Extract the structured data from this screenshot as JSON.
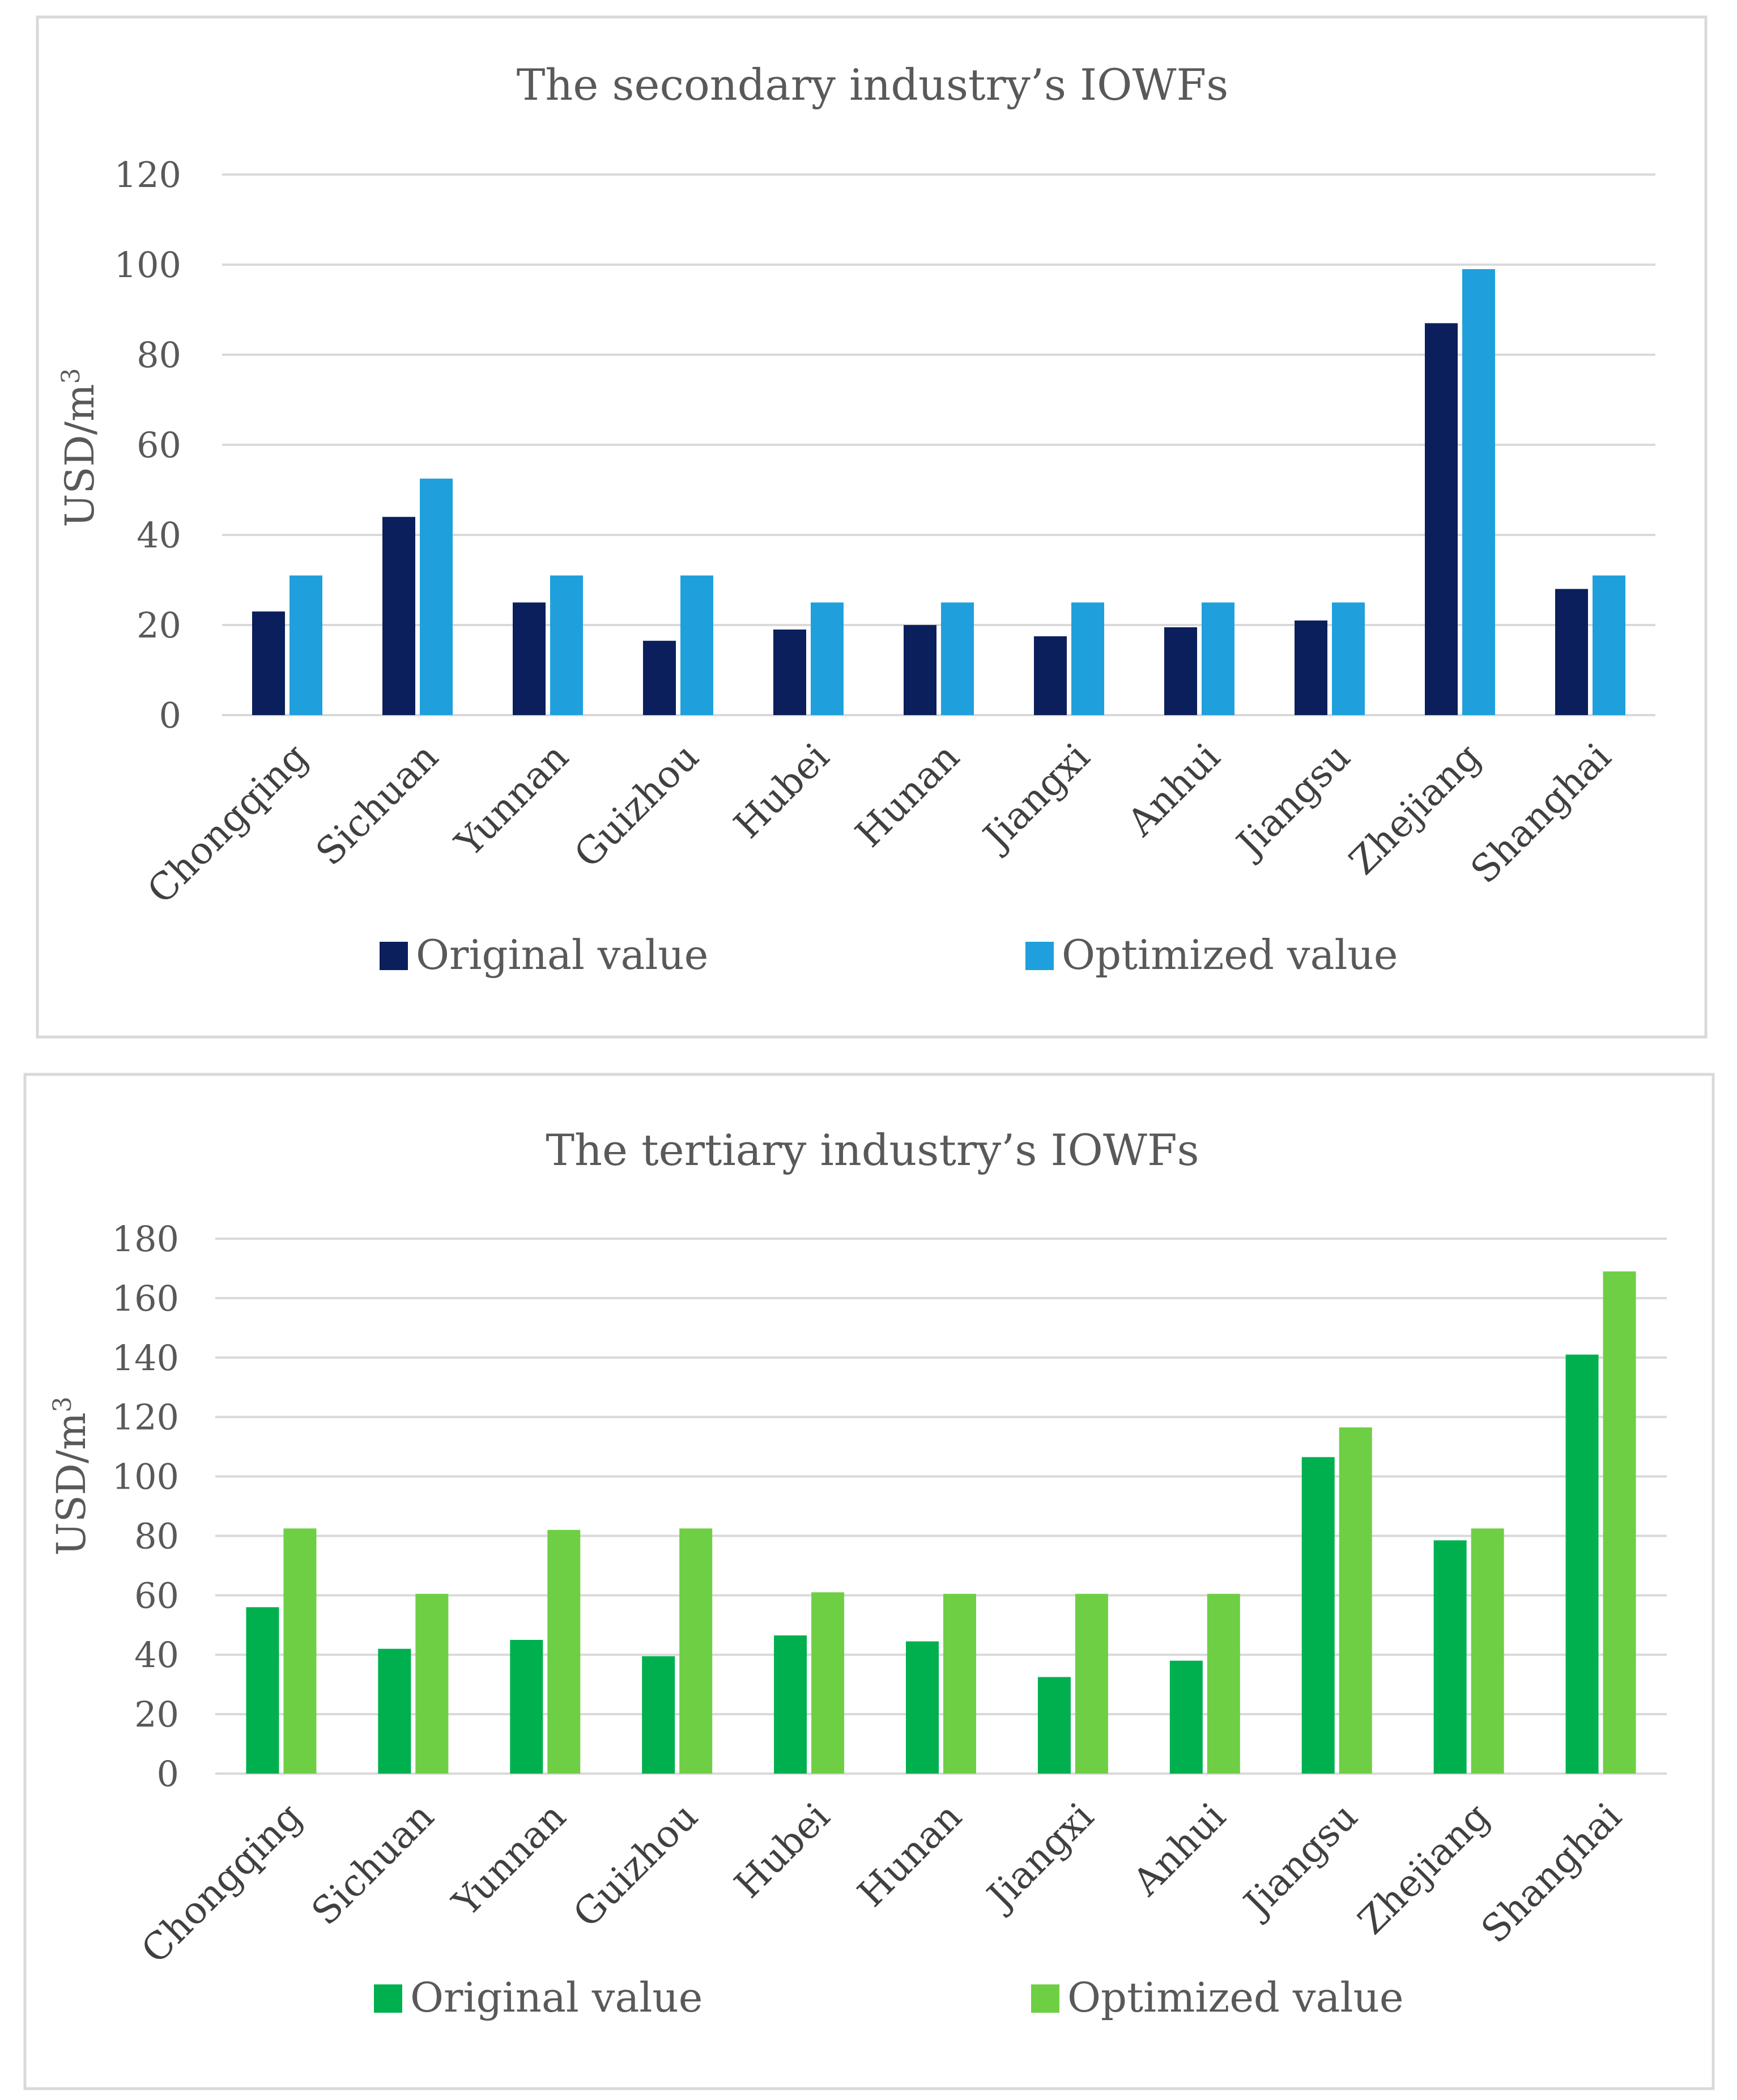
{
  "chart_data": [
    {
      "type": "bar",
      "title": "The secondary industry’s IOWFs",
      "xlabel": "",
      "ylabel": "USD/m",
      "ylabel_superscript": "3",
      "ylim": [
        0,
        120
      ],
      "ytick_step": 20,
      "yticks": [
        "0",
        "20",
        "40",
        "60",
        "80",
        "100",
        "120"
      ],
      "grid": true,
      "legend_position": "bottom",
      "categories": [
        "Chongqing",
        "Sichuan",
        "Yunnan",
        "Guizhou",
        "Hubei",
        "Hunan",
        "Jiangxi",
        "Anhui",
        "Jiangsu",
        "Zhejiang",
        "Shanghai"
      ],
      "series": [
        {
          "name": "Original value",
          "color": "#0b1f5c",
          "values": [
            23,
            44,
            25,
            16.5,
            19,
            20,
            17.5,
            19.5,
            21,
            87,
            28
          ]
        },
        {
          "name": "Optimized value",
          "color": "#1fa0dc",
          "values": [
            31,
            52.5,
            31,
            31,
            25,
            25,
            25,
            25,
            25,
            99,
            31
          ]
        }
      ]
    },
    {
      "type": "bar",
      "title": "The tertiary industry’s IOWFs",
      "xlabel": "",
      "ylabel": "USD/m",
      "ylabel_superscript": "3",
      "ylim": [
        0,
        180
      ],
      "ytick_step": 20,
      "yticks": [
        "0",
        "20",
        "40",
        "60",
        "80",
        "100",
        "120",
        "140",
        "160",
        "180"
      ],
      "grid": true,
      "legend_position": "bottom",
      "categories": [
        "Chongqing",
        "Sichuan",
        "Yunnan",
        "Guizhou",
        "Hubei",
        "Hunan",
        "Jiangxi",
        "Anhui",
        "Jiangsu",
        "Zhejiang",
        "Shanghai"
      ],
      "series": [
        {
          "name": "Original value",
          "color": "#00b04f",
          "values": [
            56,
            42,
            45,
            39.5,
            46.5,
            44.5,
            32.5,
            38,
            106.5,
            78.5,
            141
          ]
        },
        {
          "name": "Optimized value",
          "color": "#6ecf45",
          "values": [
            82.5,
            60.5,
            82,
            82.5,
            61,
            60.5,
            60.5,
            60.5,
            116.5,
            82.5,
            169
          ]
        }
      ]
    }
  ]
}
